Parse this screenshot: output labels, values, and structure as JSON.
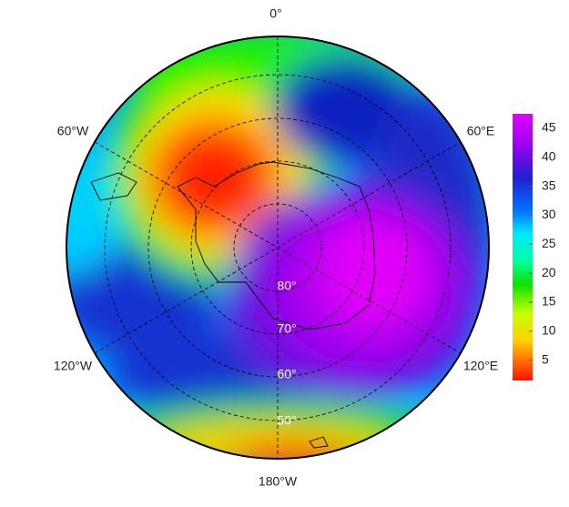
{
  "map": {
    "longitude_labels": [
      "0°",
      "60°E",
      "120°E",
      "180°W",
      "120°W",
      "60°W"
    ],
    "latitude_labels": [
      "80°",
      "70°",
      "60°",
      "50°"
    ]
  },
  "colorbar": {
    "range": [
      1.5,
      47.5
    ],
    "ticks": [
      5,
      10,
      15,
      20,
      25,
      30,
      35,
      40,
      45
    ]
  }
}
